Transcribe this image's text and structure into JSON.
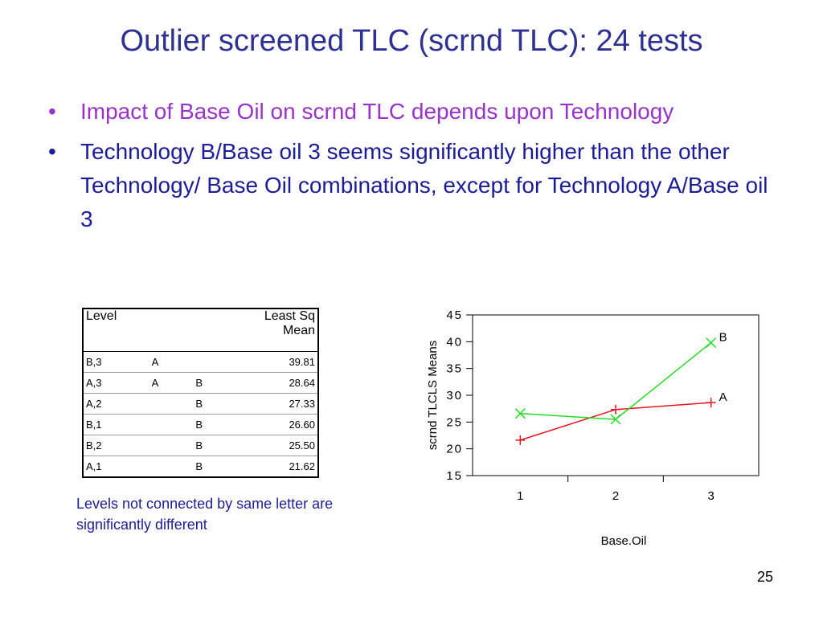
{
  "title": "Outlier screened TLC (scrnd TLC): 24 tests",
  "bullets": [
    "Impact of Base Oil on scrnd TLC depends upon Technology",
    "Technology B/Base oil 3 seems significantly higher than the other Technology/ Base Oil combinations, except for Technology A/Base oil 3"
  ],
  "table": {
    "header": [
      "Level",
      "Least Sq Mean"
    ],
    "rows": [
      [
        "B,3",
        "A",
        null,
        "39.81"
      ],
      [
        "A,3",
        "A",
        "B",
        "28.64"
      ],
      [
        "A,2",
        null,
        "B",
        "27.33"
      ],
      [
        "B,1",
        null,
        "B",
        "26.60"
      ],
      [
        "B,2",
        null,
        "B",
        "25.50"
      ],
      [
        "A,1",
        null,
        "B",
        "21.62"
      ]
    ]
  },
  "caption": "Levels not connected by same letter are significantly different",
  "page_number": "25",
  "chart_data": {
    "type": "line",
    "x_label": "Base.Oil",
    "y_label": "scrnd TLCLS Means",
    "categories": [
      "1",
      "2",
      "3"
    ],
    "series": [
      {
        "name": "A",
        "color": "#e8141a",
        "marker": "plus",
        "values": [
          21.62,
          27.33,
          28.64
        ]
      },
      {
        "name": "B",
        "color": "#22dd22",
        "marker": "x",
        "values": [
          26.6,
          25.5,
          39.81
        ]
      }
    ],
    "ylim": [
      15,
      45
    ],
    "yticks": [
      15,
      20,
      25,
      30,
      35,
      40,
      45
    ]
  }
}
